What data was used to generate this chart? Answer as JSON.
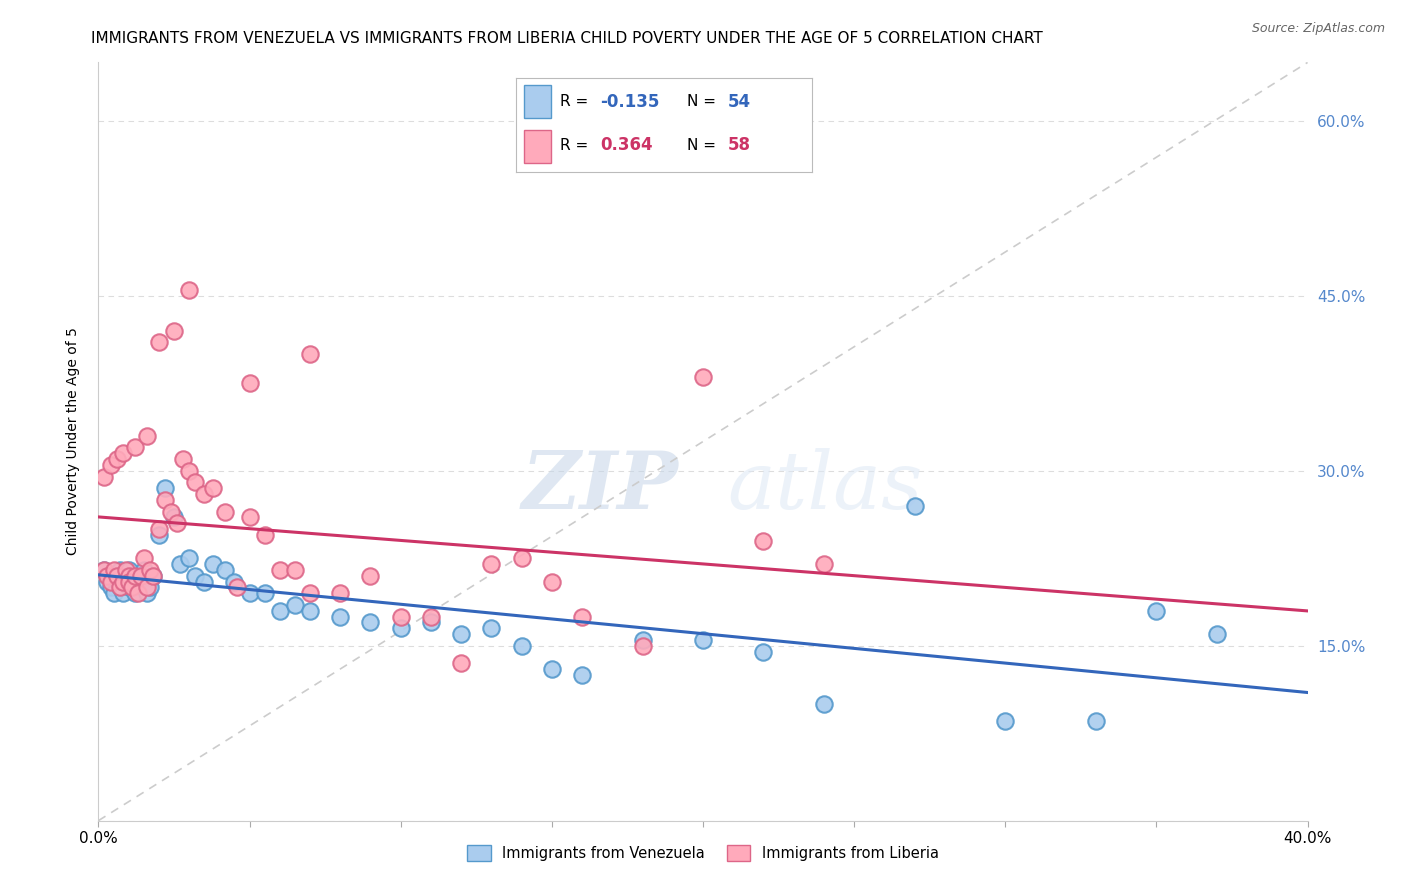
{
  "title": "IMMIGRANTS FROM VENEZUELA VS IMMIGRANTS FROM LIBERIA CHILD POVERTY UNDER THE AGE OF 5 CORRELATION CHART",
  "source": "Source: ZipAtlas.com",
  "ylabel": "Child Poverty Under the Age of 5",
  "right_yticks": [
    0.15,
    0.3,
    0.45,
    0.6
  ],
  "right_yticklabels": [
    "15.0%",
    "30.0%",
    "45.0%",
    "60.0%"
  ],
  "xmin": 0.0,
  "xmax": 0.4,
  "ymin": 0.0,
  "ymax": 0.65,
  "watermark_zip": "ZIP",
  "watermark_atlas": "atlas",
  "venezuela_color": "#aaccee",
  "venezuela_edge_color": "#5599cc",
  "liberia_color": "#ffaabb",
  "liberia_edge_color": "#dd6688",
  "venezuela_line_color": "#3366bb",
  "liberia_line_color": "#cc3366",
  "diagonal_line_color": "#cccccc",
  "grid_color": "#dddddd",
  "background_color": "#ffffff",
  "title_fontsize": 11,
  "axis_label_fontsize": 10,
  "tick_fontsize": 11,
  "right_tick_color": "#5588cc",
  "source_fontsize": 9,
  "venezuela_r": "-0.135",
  "venezuela_n": "54",
  "liberia_r": "0.364",
  "liberia_n": "58",
  "venezuela_scatter_x": [
    0.002,
    0.003,
    0.004,
    0.005,
    0.005,
    0.006,
    0.007,
    0.007,
    0.008,
    0.008,
    0.009,
    0.01,
    0.01,
    0.011,
    0.012,
    0.013,
    0.014,
    0.015,
    0.016,
    0.017,
    0.018,
    0.02,
    0.022,
    0.025,
    0.027,
    0.03,
    0.032,
    0.035,
    0.038,
    0.042,
    0.045,
    0.05,
    0.055,
    0.06,
    0.065,
    0.07,
    0.08,
    0.09,
    0.1,
    0.11,
    0.12,
    0.13,
    0.14,
    0.15,
    0.16,
    0.18,
    0.2,
    0.22,
    0.24,
    0.27,
    0.3,
    0.33,
    0.35,
    0.37
  ],
  "venezuela_scatter_y": [
    0.215,
    0.205,
    0.2,
    0.21,
    0.195,
    0.21,
    0.2,
    0.215,
    0.205,
    0.195,
    0.21,
    0.2,
    0.215,
    0.205,
    0.195,
    0.21,
    0.205,
    0.215,
    0.195,
    0.2,
    0.21,
    0.245,
    0.285,
    0.26,
    0.22,
    0.225,
    0.21,
    0.205,
    0.22,
    0.215,
    0.205,
    0.195,
    0.195,
    0.18,
    0.185,
    0.18,
    0.175,
    0.17,
    0.165,
    0.17,
    0.16,
    0.165,
    0.15,
    0.13,
    0.125,
    0.155,
    0.155,
    0.145,
    0.1,
    0.27,
    0.085,
    0.085,
    0.18,
    0.16
  ],
  "liberia_scatter_x": [
    0.002,
    0.003,
    0.004,
    0.005,
    0.006,
    0.007,
    0.008,
    0.009,
    0.01,
    0.01,
    0.011,
    0.012,
    0.013,
    0.014,
    0.015,
    0.016,
    0.017,
    0.018,
    0.02,
    0.022,
    0.024,
    0.026,
    0.028,
    0.03,
    0.032,
    0.035,
    0.038,
    0.042,
    0.046,
    0.05,
    0.055,
    0.06,
    0.065,
    0.07,
    0.08,
    0.09,
    0.1,
    0.11,
    0.12,
    0.13,
    0.14,
    0.15,
    0.16,
    0.18,
    0.2,
    0.22,
    0.24,
    0.002,
    0.004,
    0.006,
    0.008,
    0.012,
    0.016,
    0.02,
    0.025,
    0.03,
    0.05,
    0.07
  ],
  "liberia_scatter_y": [
    0.215,
    0.21,
    0.205,
    0.215,
    0.21,
    0.2,
    0.205,
    0.215,
    0.21,
    0.205,
    0.2,
    0.21,
    0.195,
    0.21,
    0.225,
    0.2,
    0.215,
    0.21,
    0.25,
    0.275,
    0.265,
    0.255,
    0.31,
    0.3,
    0.29,
    0.28,
    0.285,
    0.265,
    0.2,
    0.26,
    0.245,
    0.215,
    0.215,
    0.195,
    0.195,
    0.21,
    0.175,
    0.175,
    0.135,
    0.22,
    0.225,
    0.205,
    0.175,
    0.15,
    0.38,
    0.24,
    0.22,
    0.295,
    0.305,
    0.31,
    0.315,
    0.32,
    0.33,
    0.41,
    0.42,
    0.455,
    0.375,
    0.4
  ]
}
